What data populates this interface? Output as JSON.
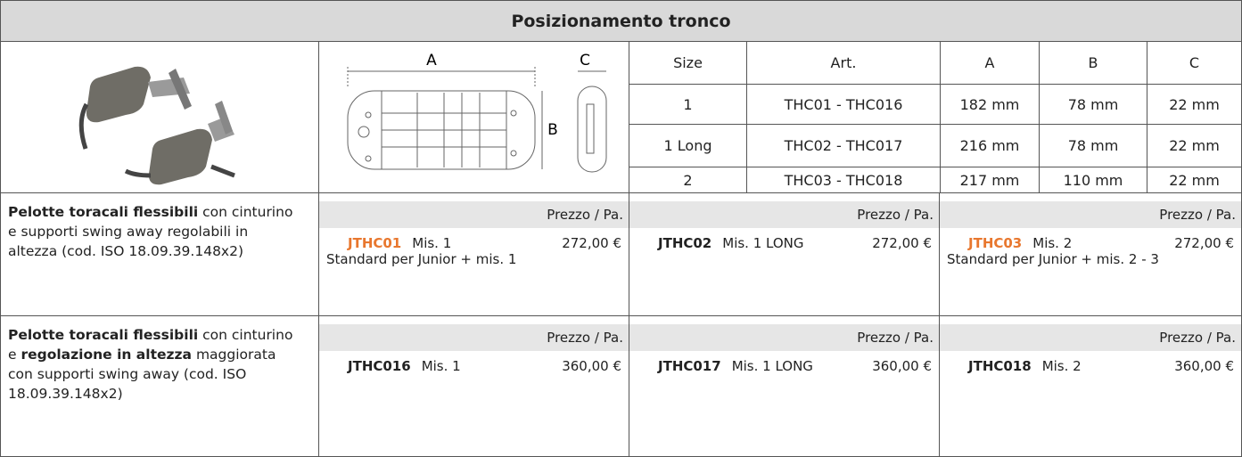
{
  "header": {
    "title": "Posizionamento tronco"
  },
  "drawing": {
    "labels": [
      "A",
      "C",
      "B"
    ]
  },
  "sizes": {
    "columns": [
      "Size",
      "Art.",
      "A",
      "B",
      "C"
    ],
    "rows": [
      [
        "1",
        "THC01 - THC016",
        "182 mm",
        "78 mm",
        "22 mm"
      ],
      [
        "1 Long",
        "THC02 - THC017",
        "216 mm",
        "78 mm",
        "22 mm"
      ],
      [
        "2",
        "THC03 - THC018",
        "217 mm",
        "110 mm",
        "22 mm"
      ]
    ]
  },
  "products": [
    {
      "description": [
        {
          "text": "Pelotte toracali flessibili",
          "bold": true
        },
        {
          "text": " con cinturino e supporti swing away regolabili in altezza (cod. ISO 18.09.39.148x2)"
        }
      ],
      "items": [
        {
          "price_label": "Prezzo / Pa.",
          "code": "JTHC01",
          "color": "#e8772e",
          "size": "Mis. 1",
          "price": "272,00 €",
          "note": "Standard per Junior + mis. 1"
        },
        {
          "price_label": "Prezzo / Pa.",
          "code": "JTHC02",
          "color": "#222222",
          "size": "Mis. 1 LONG",
          "price": "272,00 €"
        },
        {
          "price_label": "Prezzo / Pa.",
          "code": "JTHC03",
          "color": "#e8772e",
          "size": "Mis. 2",
          "price": "272,00 €",
          "note": "Standard per Junior + mis. 2 - 3"
        }
      ]
    },
    {
      "description": [
        {
          "text": "Pelotte toracali flessibili",
          "bold": true
        },
        {
          "text": " con cinturino e "
        },
        {
          "text": "regolazione in altezza",
          "bold": true
        },
        {
          "text": " maggiorata con supporti swing away (cod. ISO 18.09.39.148x2)"
        }
      ],
      "items": [
        {
          "price_label": "Prezzo / Pa.",
          "code": "JTHC016",
          "color": "#222222",
          "size": "Mis. 1",
          "price": "360,00 €"
        },
        {
          "price_label": "Prezzo / Pa.",
          "code": "JTHC017",
          "color": "#222222",
          "size": "Mis. 1 LONG",
          "price": "360,00 €"
        },
        {
          "price_label": "Prezzo / Pa.",
          "code": "JTHC018",
          "color": "#222222",
          "size": "Mis. 2",
          "price": "360,00 €"
        }
      ]
    }
  ]
}
